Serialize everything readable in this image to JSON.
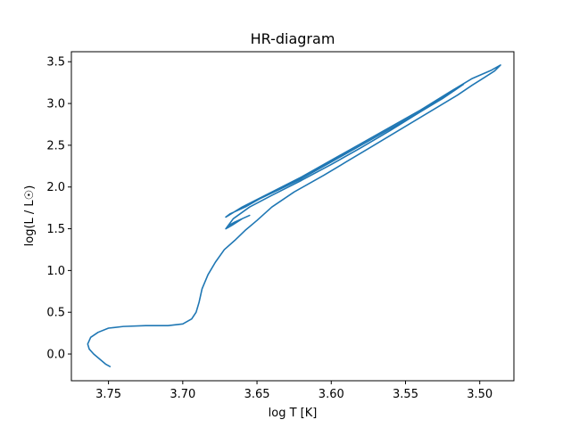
{
  "chart_data": {
    "type": "line",
    "title": "HR-diagram",
    "xlabel": "log T [K]",
    "ylabel": "log(L / L☉)",
    "xlim": [
      3.775,
      3.477
    ],
    "ylim": [
      -0.32,
      3.62
    ],
    "x_inverted": true,
    "grid": false,
    "xticks": [
      3.75,
      3.7,
      3.65,
      3.6,
      3.55,
      3.5
    ],
    "xtick_labels": [
      "3.75",
      "3.70",
      "3.65",
      "3.60",
      "3.55",
      "3.50"
    ],
    "yticks": [
      0.0,
      0.5,
      1.0,
      1.5,
      2.0,
      2.5,
      3.0,
      3.5
    ],
    "ytick_labels": [
      "0.0",
      "0.5",
      "1.0",
      "1.5",
      "2.0",
      "2.5",
      "3.0",
      "3.5"
    ],
    "series": [
      {
        "color": "#1f77b4",
        "x": [
          3.749,
          3.752,
          3.756,
          3.76,
          3.763,
          3.764,
          3.762,
          3.757,
          3.75,
          3.74,
          3.725,
          3.71,
          3.7,
          3.694,
          3.691,
          3.689,
          3.687,
          3.683,
          3.678,
          3.672,
          3.665,
          3.658,
          3.65,
          3.64,
          3.625,
          3.605,
          3.59,
          3.575,
          3.56,
          3.545,
          3.53,
          3.515,
          3.505,
          3.497,
          3.49,
          3.486,
          3.492,
          3.505,
          3.52,
          3.54,
          3.56,
          3.58,
          3.6,
          3.62,
          3.64,
          3.66,
          3.671,
          3.668,
          3.658,
          3.648,
          3.635,
          3.62,
          3.6,
          3.58,
          3.56,
          3.54,
          3.525,
          3.511,
          3.52,
          3.54,
          3.56,
          3.58,
          3.6,
          3.62,
          3.64,
          3.655,
          3.666,
          3.671,
          3.667,
          3.66,
          3.655,
          3.665,
          3.669
        ],
        "y": [
          -0.15,
          -0.12,
          -0.06,
          0.0,
          0.06,
          0.12,
          0.2,
          0.26,
          0.31,
          0.33,
          0.34,
          0.34,
          0.36,
          0.42,
          0.5,
          0.62,
          0.78,
          0.95,
          1.1,
          1.25,
          1.36,
          1.48,
          1.6,
          1.76,
          1.94,
          2.14,
          2.3,
          2.46,
          2.62,
          2.78,
          2.94,
          3.1,
          3.22,
          3.31,
          3.39,
          3.46,
          3.4,
          3.3,
          3.14,
          2.92,
          2.72,
          2.52,
          2.32,
          2.12,
          1.94,
          1.76,
          1.64,
          1.68,
          1.76,
          1.86,
          1.97,
          2.1,
          2.3,
          2.5,
          2.7,
          2.9,
          3.06,
          3.23,
          3.12,
          2.9,
          2.68,
          2.47,
          2.27,
          2.08,
          1.9,
          1.76,
          1.62,
          1.5,
          1.54,
          1.62,
          1.66,
          1.58,
          1.54
        ]
      }
    ]
  }
}
